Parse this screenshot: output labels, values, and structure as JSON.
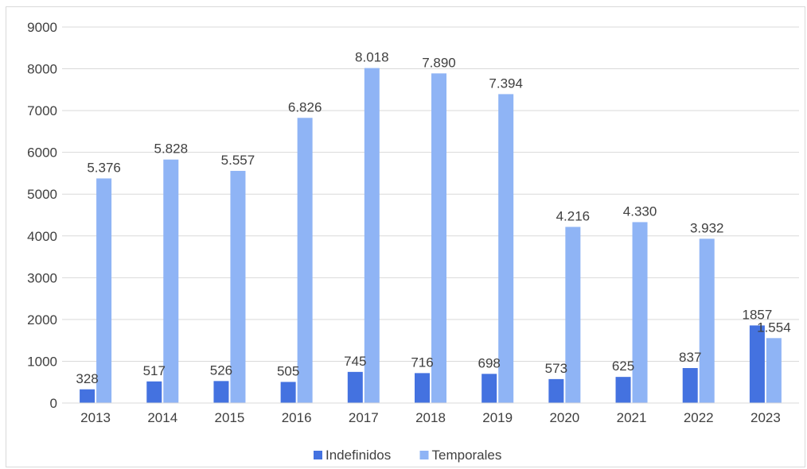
{
  "chart_data": {
    "type": "bar",
    "title": "",
    "xlabel": "",
    "ylabel": "",
    "ylim": [
      0,
      9000
    ],
    "yticks": [
      "0",
      "1000",
      "2000",
      "3000",
      "4000",
      "5000",
      "6000",
      "7000",
      "8000",
      "9000"
    ],
    "categories": [
      "2013",
      "2014",
      "2015",
      "2016",
      "2017",
      "2018",
      "2019",
      "2020",
      "2021",
      "2022",
      "2023"
    ],
    "series": [
      {
        "name": "Indefinidos",
        "color": "#4472e0",
        "values": [
          328,
          517,
          526,
          505,
          745,
          716,
          698,
          573,
          625,
          837,
          1857
        ],
        "labels": [
          "328",
          "517",
          "526",
          "505",
          "745",
          "716",
          "698",
          "573",
          "625",
          "837",
          "1857"
        ]
      },
      {
        "name": "Temporales",
        "color": "#8fb4f5",
        "values": [
          5376,
          5828,
          5557,
          6826,
          8018,
          7890,
          7394,
          4216,
          4330,
          3932,
          1554
        ],
        "labels": [
          "5.376",
          "5.828",
          "5.557",
          "6.826",
          "8.018",
          "7.890",
          "7.394",
          "4.216",
          "4.330",
          "3.932",
          "1.554"
        ]
      }
    ],
    "grid": true,
    "legend": "bottom"
  }
}
